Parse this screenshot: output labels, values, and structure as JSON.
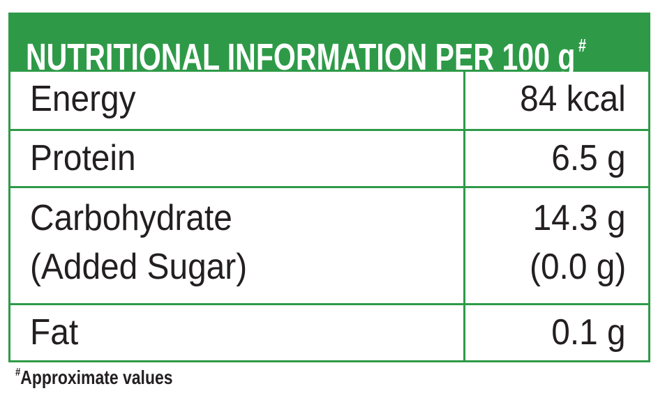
{
  "header": {
    "title": "NUTRITIONAL INFORMATION PER 100 g",
    "mark": "#"
  },
  "table": {
    "rows": [
      [
        [
          "Energy"
        ],
        [
          "84 kcal"
        ]
      ],
      [
        [
          "Protein"
        ],
        [
          "6.5 g"
        ]
      ],
      [
        [
          "Carbohydrate",
          "(Added Sugar)"
        ],
        [
          "14.3 g",
          "(0.0 g)"
        ]
      ],
      [
        [
          "Fat"
        ],
        [
          "0.1 g"
        ]
      ]
    ]
  },
  "footnote": {
    "mark": "#",
    "text": "Approximate values"
  }
}
